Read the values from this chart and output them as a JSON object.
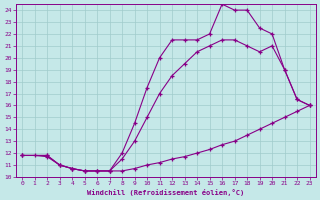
{
  "xlabel": "Windchill (Refroidissement éolien,°C)",
  "background_color": "#c5e8e8",
  "grid_color": "#a0cccc",
  "line_color": "#880088",
  "xlim_min": -0.5,
  "xlim_max": 23.5,
  "ylim_min": 10.0,
  "ylim_max": 24.5,
  "xticks": [
    0,
    1,
    2,
    3,
    4,
    5,
    6,
    7,
    8,
    9,
    10,
    11,
    12,
    13,
    14,
    15,
    16,
    17,
    18,
    19,
    20,
    21,
    22,
    23
  ],
  "yticks": [
    10,
    11,
    12,
    13,
    14,
    15,
    16,
    17,
    18,
    19,
    20,
    21,
    22,
    23,
    24
  ],
  "curve1_x": [
    0,
    1,
    2,
    3,
    4,
    5,
    6,
    7,
    8,
    9,
    10,
    11,
    12,
    13,
    14,
    15,
    16,
    17,
    18,
    19,
    20,
    21,
    22,
    23
  ],
  "curve1_y": [
    11.8,
    11.8,
    11.7,
    11.0,
    10.7,
    10.5,
    10.5,
    10.5,
    10.5,
    10.7,
    11.0,
    11.2,
    11.5,
    11.7,
    12.0,
    12.3,
    12.7,
    13.0,
    13.5,
    14.0,
    14.5,
    15.0,
    15.5,
    16.0
  ],
  "curve2_x": [
    0,
    2,
    3,
    4,
    5,
    6,
    7,
    8,
    9,
    10,
    11,
    12,
    13,
    14,
    15,
    16,
    17,
    18,
    19,
    20,
    21,
    22,
    23
  ],
  "curve2_y": [
    11.8,
    11.8,
    11.0,
    10.7,
    10.5,
    10.5,
    10.5,
    11.5,
    13.0,
    15.0,
    17.0,
    18.5,
    19.5,
    20.5,
    21.0,
    21.5,
    21.5,
    21.0,
    20.5,
    21.0,
    19.0,
    16.5,
    16.0
  ],
  "curve3_x": [
    0,
    2,
    3,
    4,
    5,
    6,
    7,
    8,
    9,
    10,
    11,
    12,
    13,
    14,
    15,
    16,
    17,
    18,
    19,
    20,
    21,
    22,
    23
  ],
  "curve3_y": [
    11.8,
    11.8,
    11.0,
    10.7,
    10.5,
    10.5,
    10.5,
    12.0,
    14.5,
    17.5,
    20.0,
    21.5,
    21.5,
    21.5,
    22.0,
    24.5,
    24.0,
    24.0,
    22.5,
    22.0,
    19.0,
    16.5,
    16.0
  ]
}
